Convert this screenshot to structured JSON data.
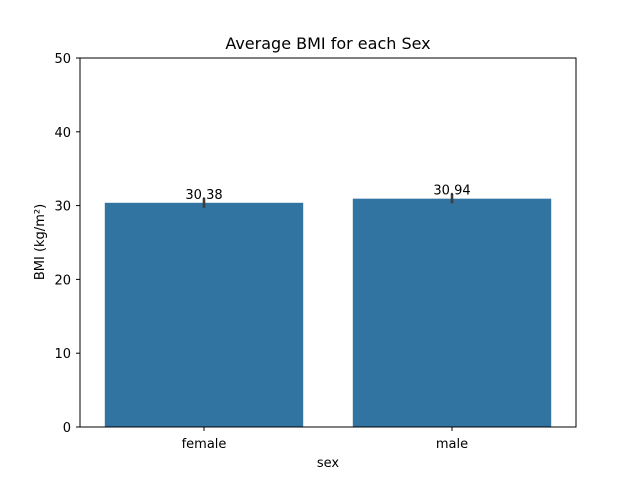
{
  "chart_data": {
    "type": "bar",
    "title": "Average BMI for each Sex",
    "xlabel": "sex",
    "ylabel": "BMI (kg/m²)",
    "categories": [
      "female",
      "male"
    ],
    "values": [
      30.38,
      30.94
    ],
    "value_labels": [
      "30.38",
      "30.94"
    ],
    "error_bars": [
      [
        29.7,
        31.0
      ],
      [
        30.3,
        31.6
      ]
    ],
    "ylim": [
      0,
      50
    ],
    "yticks": [
      0,
      10,
      20,
      30,
      40,
      50
    ],
    "ytick_labels": [
      "0",
      "10",
      "20",
      "30",
      "40",
      "50"
    ],
    "grid": false,
    "legend": false,
    "bar_color": "#3274a1",
    "error_color": "#3d3d3d"
  }
}
